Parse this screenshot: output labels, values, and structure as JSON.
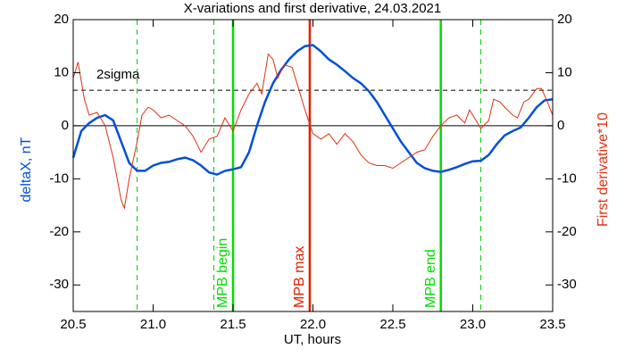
{
  "chart_data": {
    "type": "line",
    "title": "X-variations and first derivative, 24.03.2021",
    "xlabel": "UT, hours",
    "ylabel": "deltaX, nT",
    "y2label": "First derivative*10",
    "xlim": [
      20.5,
      23.5
    ],
    "ylim": [
      -35,
      20
    ],
    "y2lim": [
      -35,
      20
    ],
    "xticks": [
      20.5,
      {
        "value": 21,
        "label": "21.0"
      },
      21.5,
      {
        "value": 22,
        "label": "22.0"
      },
      22.5,
      {
        "value": 23,
        "label": "23.0"
      },
      23.5
    ],
    "yticks": [
      20,
      10,
      0,
      -10,
      -20,
      -30
    ],
    "y2ticks": [
      20,
      10,
      0,
      -10,
      -20,
      -30
    ],
    "series": [
      {
        "color": "#0050d8",
        "axis": "y",
        "x": [
          20.5,
          20.55,
          20.6,
          20.65,
          20.7,
          20.75,
          20.8,
          20.85,
          20.9,
          20.95,
          21.0,
          21.05,
          21.1,
          21.15,
          21.2,
          21.25,
          21.3,
          21.35,
          21.4,
          21.45,
          21.5,
          21.55,
          21.6,
          21.65,
          21.7,
          21.75,
          21.8,
          21.85,
          21.9,
          21.95,
          22.0,
          22.05,
          22.1,
          22.15,
          22.2,
          22.25,
          22.3,
          22.35,
          22.4,
          22.45,
          22.5,
          22.55,
          22.6,
          22.65,
          22.7,
          22.75,
          22.8,
          22.85,
          22.9,
          22.95,
          23.0,
          23.05,
          23.1,
          23.15,
          23.2,
          23.25,
          23.3,
          23.35,
          23.4,
          23.45,
          23.5
        ],
        "values": [
          -6,
          -1,
          0.5,
          1.5,
          2,
          1,
          -3,
          -7,
          -8.5,
          -8.5,
          -7.5,
          -7,
          -6.8,
          -6.3,
          -6,
          -6.5,
          -7.5,
          -8.8,
          -9.2,
          -8.5,
          -8.2,
          -7.8,
          -5,
          0,
          4.5,
          8,
          10.5,
          12.5,
          14,
          15,
          15.2,
          14,
          12.5,
          11.5,
          10.3,
          9,
          8,
          6.5,
          4.5,
          2,
          -0.5,
          -3,
          -5,
          -7,
          -8,
          -8.5,
          -8.7,
          -8.3,
          -7.8,
          -7.2,
          -6.7,
          -6.6,
          -5.5,
          -3.5,
          -1.8,
          -1,
          -0.3,
          1.5,
          3.5,
          4.8,
          5
        ]
      },
      {
        "color": "#e03010",
        "axis": "y2",
        "x": [
          20.5,
          20.53,
          20.57,
          20.6,
          20.65,
          20.7,
          20.75,
          20.8,
          20.82,
          20.85,
          20.9,
          20.93,
          20.97,
          21.0,
          21.05,
          21.1,
          21.15,
          21.2,
          21.25,
          21.3,
          21.35,
          21.4,
          21.45,
          21.5,
          21.55,
          21.6,
          21.65,
          21.68,
          21.72,
          21.75,
          21.78,
          21.82,
          21.87,
          21.92,
          21.95,
          22.0,
          22.05,
          22.1,
          22.15,
          22.2,
          22.25,
          22.3,
          22.35,
          22.4,
          22.45,
          22.5,
          22.55,
          22.6,
          22.65,
          22.7,
          22.75,
          22.8,
          22.85,
          22.9,
          22.95,
          22.98,
          23.0,
          23.05,
          23.1,
          23.13,
          23.17,
          23.2,
          23.25,
          23.28,
          23.32,
          23.35,
          23.4,
          23.43,
          23.46,
          23.5
        ],
        "values": [
          9,
          12,
          5,
          2,
          2.5,
          0,
          -6,
          -14,
          -15.5,
          -10,
          -3,
          2,
          3.5,
          3,
          1.5,
          2,
          1,
          0,
          -2,
          -5,
          -2.5,
          -2,
          1.5,
          -1,
          3,
          6,
          8,
          6,
          13.5,
          12.5,
          9,
          11.5,
          11,
          6,
          3,
          -1.5,
          -2.5,
          -1.5,
          -3.5,
          -1.5,
          -3,
          -5.5,
          -7,
          -7.5,
          -7.5,
          -8,
          -7,
          -6,
          -5,
          -4.5,
          -2,
          0,
          1.5,
          2,
          0.5,
          3,
          2,
          -0.5,
          1,
          5,
          4.5,
          3.5,
          2,
          1.5,
          4.5,
          5,
          7,
          7,
          5,
          2
        ]
      }
    ],
    "hlines": [
      {
        "y": 6.7,
        "label": "2sigma",
        "style": "dashed",
        "color": "#000000"
      },
      {
        "y": 0,
        "style": "solid",
        "color": "#000000"
      }
    ],
    "vlines": [
      {
        "x": 20.9,
        "style": "dashed",
        "color": "#00cc00"
      },
      {
        "x": 21.38,
        "style": "dashed",
        "color": "#00cc00"
      },
      {
        "x": 21.5,
        "style": "solid",
        "color": "#00dd00",
        "label": "MPB begin"
      },
      {
        "x": 21.98,
        "style": "solid",
        "color": "#e02000",
        "label": "MPB max"
      },
      {
        "x": 22.8,
        "style": "solid",
        "color": "#00dd00",
        "label": "MPB end"
      },
      {
        "x": 23.05,
        "style": "dashed",
        "color": "#00cc00"
      }
    ]
  }
}
